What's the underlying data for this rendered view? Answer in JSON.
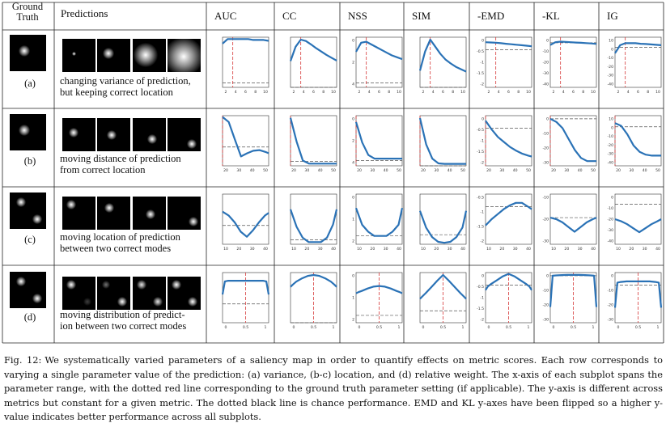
{
  "header": {
    "ground_truth": "Ground Truth",
    "predictions": "Predictions",
    "metrics": [
      "AUC",
      "CC",
      "NSS",
      "SIM",
      "-EMD",
      "-KL",
      "IG"
    ]
  },
  "rows": [
    {
      "label": "(a)",
      "desc": [
        "changing variance of prediction,",
        "but keeping correct location"
      ]
    },
    {
      "label": "(b)",
      "desc": [
        "moving distance of prediction",
        "from correct location"
      ]
    },
    {
      "label": "(c)",
      "desc": [
        "moving location of prediction",
        "between two correct modes"
      ]
    },
    {
      "label": "(d)",
      "desc": [
        "moving distribution of predict-",
        "ion between two correct modes"
      ]
    }
  ],
  "colors": {
    "line": "#2a72b6",
    "ground_truth_marker": "#d63a3a",
    "chance": "#555555"
  },
  "chart_data": [
    {
      "row": "a",
      "type": "line",
      "x_ticks": [
        "2",
        "4",
        "6",
        "8",
        "10"
      ],
      "x": [
        1,
        2,
        3,
        4,
        5,
        6,
        7,
        8,
        9,
        10
      ],
      "ground_truth_x": 3,
      "metrics": [
        {
          "name": "AUC",
          "ylim": [
            0.45,
            1.0
          ],
          "y_ticks": [],
          "chance": 0.5,
          "values": [
            0.93,
            0.98,
            0.98,
            0.98,
            0.98,
            0.98,
            0.97,
            0.97,
            0.97,
            0.96
          ]
        },
        {
          "name": "CC",
          "ylim": [
            0,
            1.05
          ],
          "y_ticks": [],
          "chance": 0,
          "values": [
            0.55,
            0.85,
            1.0,
            0.97,
            0.9,
            0.82,
            0.75,
            0.68,
            0.62,
            0.56
          ]
        },
        {
          "name": "NSS",
          "ylim": [
            -0.5,
            5
          ],
          "y_ticks": [
            "0",
            "2",
            "4"
          ],
          "chance": 0,
          "values": [
            3.4,
            4.4,
            4.5,
            4.2,
            3.9,
            3.6,
            3.3,
            3.0,
            2.8,
            2.6
          ]
        },
        {
          "name": "SIM",
          "ylim": [
            0,
            1.05
          ],
          "y_ticks": [],
          "chance": 0,
          "values": [
            0.35,
            0.75,
            1.0,
            0.85,
            0.7,
            0.58,
            0.5,
            0.43,
            0.38,
            0.33
          ]
        },
        {
          "name": "-EMD",
          "ylim": [
            -2,
            0
          ],
          "y_ticks": [
            "0",
            "-0.5",
            "-1",
            "-1.5",
            "-2"
          ],
          "chance": -0.5,
          "values": [
            -0.2,
            -0.21,
            -0.22,
            -0.24,
            -0.26,
            -0.28,
            -0.3,
            -0.32,
            -0.34,
            -0.36
          ]
        },
        {
          "name": "-KL",
          "ylim": [
            -40,
            5
          ],
          "y_ticks": [
            "0",
            "-10",
            "-20",
            "-30",
            "-40"
          ],
          "chance": 0,
          "values": [
            -2,
            0.5,
            1,
            0.8,
            0.5,
            0.2,
            0,
            -0.3,
            -0.6,
            -1
          ]
        },
        {
          "name": "IG",
          "ylim": [
            -40,
            10
          ],
          "y_ticks": [
            "10",
            "0",
            "-10",
            "-20",
            "-30",
            "-40"
          ],
          "chance": 0,
          "values": [
            -6,
            2,
            4,
            4,
            4,
            3.5,
            3.2,
            2.8,
            2.4,
            2
          ]
        }
      ]
    },
    {
      "row": "b",
      "type": "line",
      "x_ticks": [
        "20",
        "30",
        "40",
        "50"
      ],
      "x": [
        20,
        24,
        28,
        32,
        36,
        40,
        44,
        48,
        50
      ],
      "ground_truth_x": 20,
      "metrics": [
        {
          "name": "AUC",
          "ylim": [
            0.2,
            1.0
          ],
          "y_ticks": [],
          "chance": 0.5,
          "values": [
            0.98,
            0.9,
            0.62,
            0.35,
            0.4,
            0.44,
            0.45,
            0.42,
            0.4
          ]
        },
        {
          "name": "CC",
          "ylim": [
            -0.1,
            1.05
          ],
          "y_ticks": [],
          "chance": 0,
          "values": [
            1.0,
            0.45,
            0.02,
            -0.05,
            -0.05,
            -0.05,
            -0.05,
            -0.05,
            -0.05
          ]
        },
        {
          "name": "NSS",
          "ylim": [
            -0.6,
            5
          ],
          "y_ticks": [
            "0",
            "2",
            "4"
          ],
          "chance": 0,
          "values": [
            4.3,
            2.0,
            0.6,
            0.2,
            0.2,
            0.2,
            0.2,
            0.2,
            0.2
          ]
        },
        {
          "name": "SIM",
          "ylim": [
            0,
            1.05
          ],
          "y_ticks": [],
          "chance": 0,
          "values": [
            1.0,
            0.45,
            0.15,
            0.05,
            0.04,
            0.04,
            0.04,
            0.04,
            0.04
          ]
        },
        {
          "name": "-EMD",
          "ylim": [
            -2,
            0
          ],
          "y_ticks": [
            "0",
            "-0.5",
            "-1",
            "-1.5",
            "-2"
          ],
          "chance": -0.5,
          "values": [
            -0.2,
            -0.55,
            -0.85,
            -1.05,
            -1.25,
            -1.4,
            -1.52,
            -1.6,
            -1.63
          ]
        },
        {
          "name": "-KL",
          "ylim": [
            -30,
            2
          ],
          "y_ticks": [
            "0",
            "-10",
            "-20",
            "-30"
          ],
          "chance": 0,
          "values": [
            0,
            -2,
            -6,
            -13,
            -20,
            -25,
            -27,
            -27,
            -27
          ]
        },
        {
          "name": "IG",
          "ylim": [
            -42,
            12
          ],
          "y_ticks": [
            "10",
            "0",
            "-10",
            "-20",
            "-30",
            "-40"
          ],
          "chance": 0,
          "values": [
            4,
            1,
            -8,
            -20,
            -27,
            -30,
            -31,
            -31,
            -31
          ]
        }
      ]
    },
    {
      "row": "c",
      "type": "line",
      "x_ticks": [
        "10",
        "20",
        "30",
        "40"
      ],
      "x": [
        5,
        10,
        15,
        20,
        25,
        30,
        35,
        40,
        43
      ],
      "ground_truth_x": null,
      "metrics": [
        {
          "name": "AUC",
          "ylim": [
            0.2,
            1.0
          ],
          "y_ticks": [],
          "chance": 0.5,
          "values": [
            0.72,
            0.66,
            0.55,
            0.4,
            0.32,
            0.42,
            0.55,
            0.66,
            0.7
          ]
        },
        {
          "name": "CC",
          "ylim": [
            -0.1,
            1.05
          ],
          "y_ticks": [],
          "chance": 0,
          "values": [
            0.7,
            0.3,
            0.05,
            -0.05,
            -0.05,
            -0.05,
            0.05,
            0.35,
            0.7
          ]
        },
        {
          "name": "NSS",
          "ylim": [
            -0.6,
            3
          ],
          "y_ticks": [
            "0",
            "1",
            "2"
          ],
          "chance": 0,
          "values": [
            2.0,
            0.8,
            0.3,
            0.0,
            0.0,
            0.0,
            0.3,
            0.8,
            2.0
          ]
        },
        {
          "name": "SIM",
          "ylim": [
            0,
            1.05
          ],
          "y_ticks": [],
          "chance": 0.2,
          "values": [
            0.7,
            0.35,
            0.15,
            0.05,
            0.03,
            0.05,
            0.15,
            0.35,
            0.7
          ]
        },
        {
          "name": "-EMD",
          "ylim": [
            -2,
            0
          ],
          "y_ticks": [
            "-0.5",
            "-1",
            "-1.5",
            "-2"
          ],
          "chance": -0.5,
          "values": [
            -1.25,
            -1.0,
            -0.8,
            -0.6,
            -0.45,
            -0.35,
            -0.35,
            -0.5,
            -0.6
          ]
        },
        {
          "name": "-KL",
          "ylim": [
            -32,
            0
          ],
          "y_ticks": [
            "-10",
            "-20",
            "-30"
          ],
          "chance": -15,
          "values": [
            -15,
            -16,
            -18,
            -21,
            -24,
            -21,
            -18,
            -16,
            -15
          ]
        },
        {
          "name": "IG",
          "ylim": [
            -40,
            10
          ],
          "y_ticks": [
            "0",
            "-10",
            "-20",
            "-30",
            "-40"
          ],
          "chance": 0,
          "values": [
            -15,
            -17,
            -20,
            -24,
            -28,
            -24,
            -20,
            -17,
            -15
          ]
        }
      ]
    },
    {
      "row": "d",
      "type": "line",
      "x_ticks": [
        "0",
        "0.5",
        "1"
      ],
      "x": [
        0,
        0.05,
        0.125,
        0.25,
        0.375,
        0.5,
        0.625,
        0.75,
        0.875,
        0.95,
        1
      ],
      "ground_truth_x": 0.5,
      "metrics": [
        {
          "name": "AUC",
          "ylim": [
            0.2,
            1.0
          ],
          "y_ticks": [],
          "chance": 0.5,
          "values": [
            0.65,
            0.86,
            0.87,
            0.87,
            0.87,
            0.87,
            0.87,
            0.87,
            0.87,
            0.86,
            0.65
          ]
        },
        {
          "name": "CC",
          "ylim": [
            0,
            1.05
          ],
          "y_ticks": [],
          "chance": 0,
          "values": [
            0.75,
            0.8,
            0.86,
            0.93,
            0.98,
            1.0,
            0.98,
            0.93,
            0.86,
            0.8,
            0.75
          ]
        },
        {
          "name": "NSS",
          "ylim": [
            -0.6,
            3.5
          ],
          "y_ticks": [
            "0",
            "1",
            "2"
          ],
          "chance": 0,
          "values": [
            1.8,
            1.9,
            2.0,
            2.2,
            2.35,
            2.4,
            2.35,
            2.2,
            2.0,
            1.9,
            1.8
          ]
        },
        {
          "name": "SIM",
          "ylim": [
            0,
            1.05
          ],
          "y_ticks": [],
          "chance": 0.25,
          "values": [
            0.5,
            0.55,
            0.62,
            0.75,
            0.88,
            1.0,
            0.88,
            0.75,
            0.62,
            0.55,
            0.5
          ]
        },
        {
          "name": "-EMD",
          "ylim": [
            -2,
            0
          ],
          "y_ticks": [
            "0",
            "-0.5",
            "-1",
            "-1.5",
            "-2"
          ],
          "chance": -0.5,
          "values": [
            -0.7,
            -0.55,
            -0.45,
            -0.3,
            -0.15,
            -0.05,
            -0.15,
            -0.3,
            -0.45,
            -0.55,
            -0.7
          ]
        },
        {
          "name": "-KL",
          "ylim": [
            -30,
            2
          ],
          "y_ticks": [
            "0",
            "-10",
            "-20",
            "-30"
          ],
          "chance": 0,
          "values": [
            -20,
            0,
            0.2,
            0.4,
            0.5,
            0.5,
            0.5,
            0.4,
            0.2,
            0,
            -20
          ]
        },
        {
          "name": "IG",
          "ylim": [
            -30,
            10
          ],
          "y_ticks": [
            "0",
            "-10",
            "-20",
            "-30"
          ],
          "chance": 0,
          "values": [
            -18,
            2,
            2.5,
            3,
            3,
            3,
            3,
            3,
            2.5,
            2,
            -18
          ]
        }
      ]
    }
  ],
  "caption": {
    "label": "Fig. 12:",
    "text": "We systematically varied parameters of a saliency map in order to quantify effects on metric scores. Each row corresponds to varying a single parameter value of the prediction: (a) variance, (b-c) location, and (d) relative weight. The x-axis of each subplot spans the parameter range, with the dotted red line corresponding to the ground truth parameter setting (if applicable). The y-axis is different across metrics but constant for a given metric. The dotted black line is chance performance. EMD and KL y-axes have been flipped so a higher y-value indicates better performance across all subplots."
  }
}
